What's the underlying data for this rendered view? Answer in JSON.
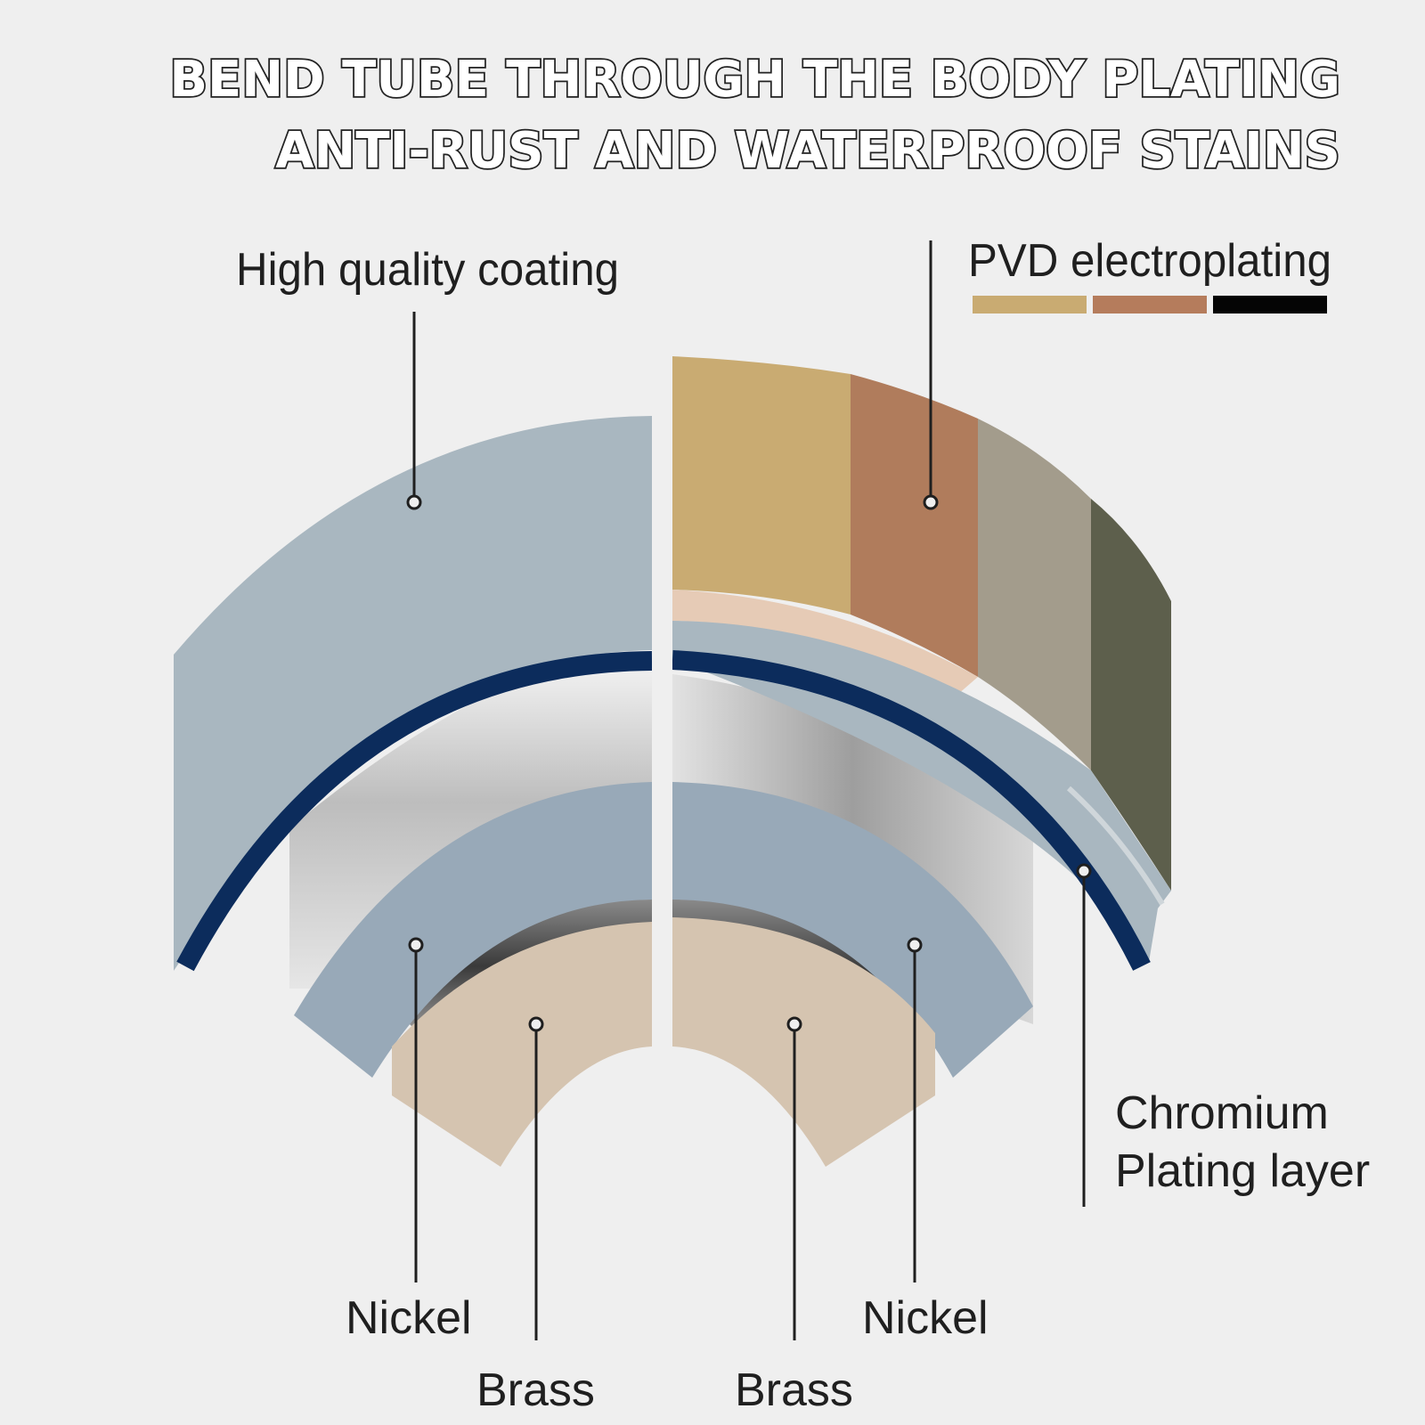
{
  "title": {
    "line1": "BEND TUBE THROUGH THE BODY PLATING",
    "line2": "ANTI-RUST AND WATERPROOF STAINS"
  },
  "labels": {
    "coating": "High quality coating",
    "pvd": "PVD electroplating",
    "chromium_line1": "Chromium",
    "chromium_line2": "Plating layer",
    "nickel_left": "Nickel",
    "brass_left": "Brass",
    "nickel_right": "Nickel",
    "brass_right": "Brass"
  },
  "pvd_swatches": [
    {
      "name": "gold",
      "color": "#c9ab72"
    },
    {
      "name": "rose-copper",
      "color": "#b57c5c"
    },
    {
      "name": "black",
      "color": "#050505"
    }
  ],
  "colors": {
    "background": "#efefef",
    "coating_blue_gray": "#a9b7c0",
    "chromium_navy": "#0c2c5c",
    "nickel": "#98a9b8",
    "brass": "#d5c4b0",
    "pvd_gold": "#c9ab72",
    "pvd_copper": "#b07c5c",
    "pvd_gray": "#a39c8c",
    "pvd_dark": "#5d5f4c"
  }
}
